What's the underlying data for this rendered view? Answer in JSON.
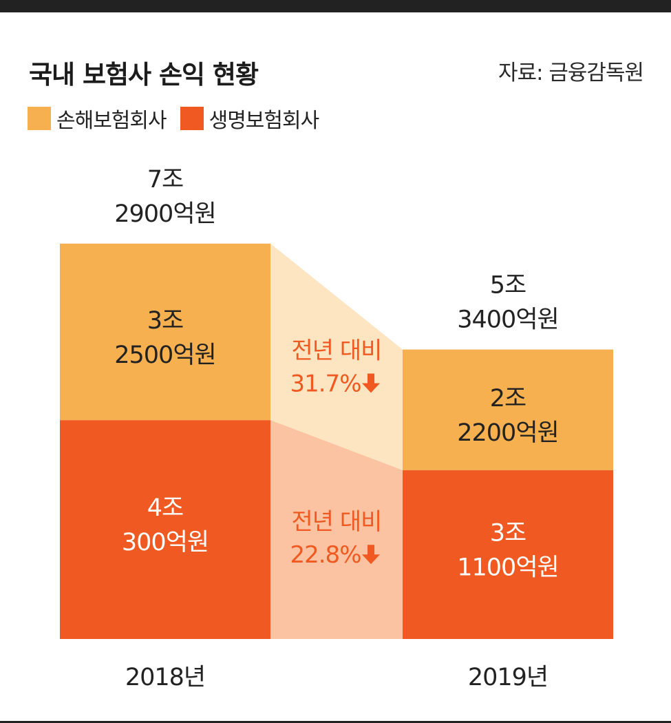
{
  "title": "국내 보험사 손익 현황",
  "source": "자료: 금융감독원",
  "colors": {
    "nonlife": "#F6B04F",
    "life": "#F05A22",
    "nonlife_band": "#FDE5C1",
    "life_band": "#FBC3A2",
    "change_text": "#F05A22",
    "text_dark": "#222222",
    "text_light": "#FFFFFF"
  },
  "legend": [
    {
      "label": "손해보험회사",
      "color": "#F6B04F"
    },
    {
      "label": "생명보험회사",
      "color": "#F05A22"
    }
  ],
  "chart_data": {
    "type": "bar",
    "stacked": true,
    "unit": "억원",
    "categories": [
      "2018년",
      "2019년"
    ],
    "series": [
      {
        "name": "생명보험회사",
        "values": [
          40300,
          31100
        ],
        "labels": [
          "4조\n300억원",
          "3조\n1100억원"
        ]
      },
      {
        "name": "손해보험회사",
        "values": [
          32500,
          22200
        ],
        "labels": [
          "3조\n2500억원",
          "2조\n2200억원"
        ]
      }
    ],
    "totals": [
      72900,
      53400
    ],
    "total_labels": [
      "7조\n2900억원",
      "5조\n3400억원"
    ],
    "changes": [
      {
        "series": "손해보험회사",
        "text": "전년 대비\n31.7%",
        "direction": "down"
      },
      {
        "series": "생명보험회사",
        "text": "전년 대비\n22.8%",
        "direction": "down"
      }
    ]
  }
}
